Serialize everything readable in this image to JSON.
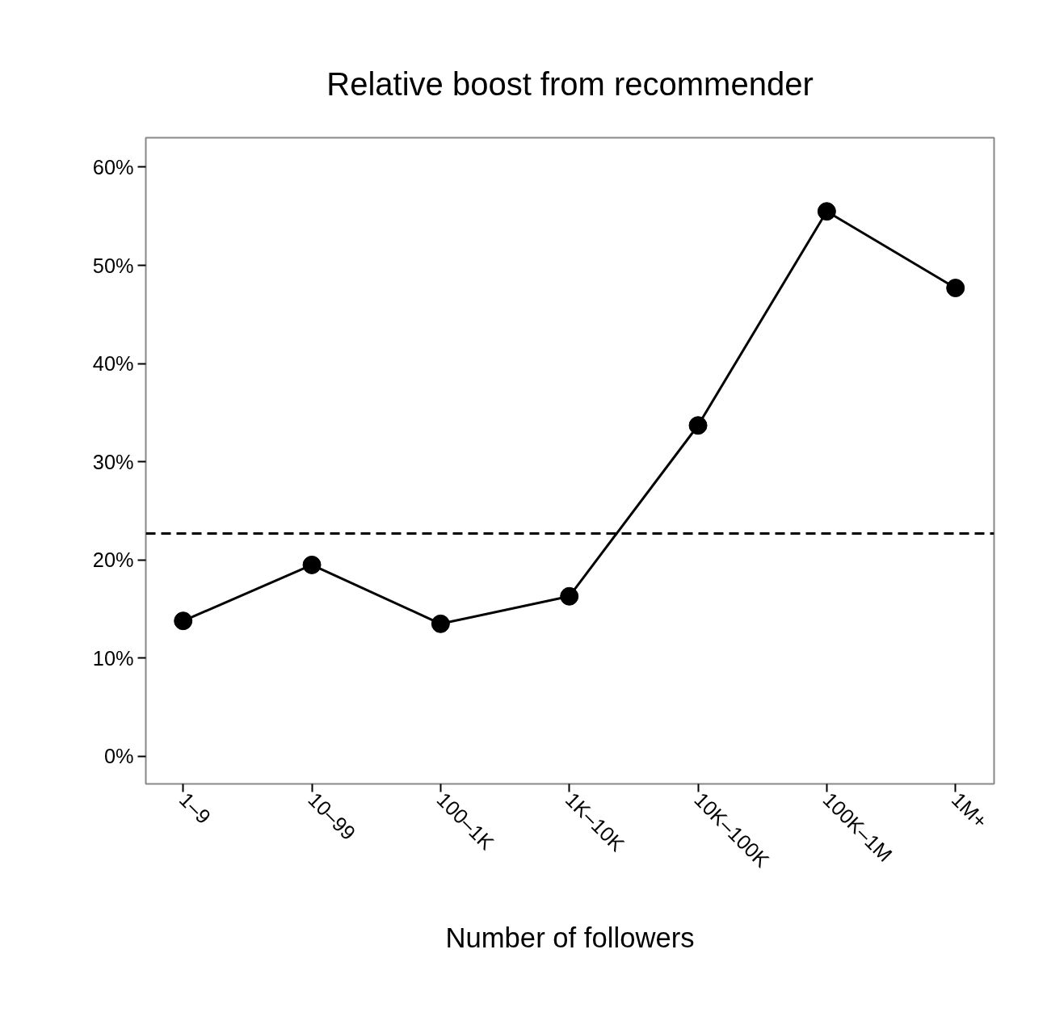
{
  "chart_data": {
    "type": "line",
    "title": "Relative boost from recommender",
    "xlabel": "Number of followers",
    "categories": [
      "1–9",
      "10–99",
      "100–1K",
      "1K–10K",
      "10K–100K",
      "100K–1M",
      "1M+"
    ],
    "series": [
      {
        "color": "#000000",
        "values": [
          13.8,
          19.5,
          13.5,
          16.3,
          33.7,
          55.5,
          47.7
        ]
      }
    ],
    "ylim": [
      -2.8,
      63
    ],
    "yticks": [
      {
        "value": 0,
        "label": "0%"
      },
      {
        "value": 10,
        "label": "10%"
      },
      {
        "value": 20,
        "label": "20%"
      },
      {
        "value": 30,
        "label": "30%"
      },
      {
        "value": 40,
        "label": "40%"
      },
      {
        "value": 50,
        "label": "50%"
      },
      {
        "value": 60,
        "label": "60%"
      }
    ],
    "ref_lines": [
      {
        "axis": "y",
        "value": 22.7,
        "label": null,
        "color": "#000000",
        "line_style": "dashed"
      }
    ],
    "marker": "circle",
    "line_style": "solid",
    "grid": false
  }
}
